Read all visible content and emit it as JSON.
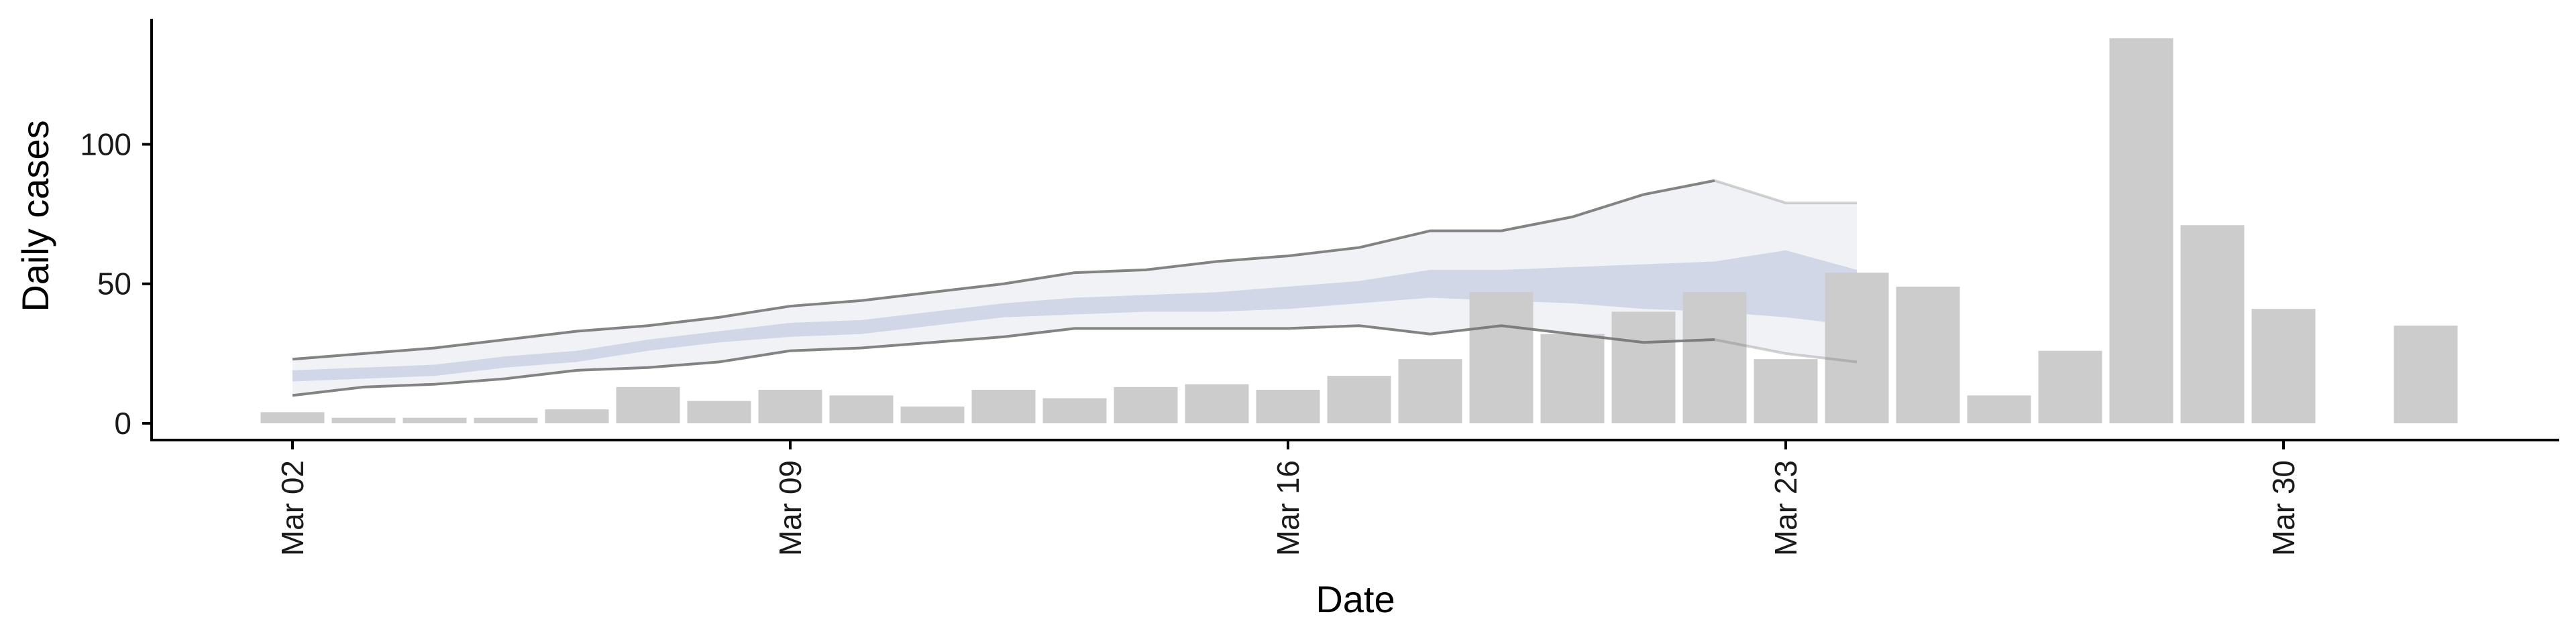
{
  "chart_data": {
    "type": "bar",
    "xlabel": "Date",
    "ylabel": "Daily cases",
    "x_ticks": [
      "Mar 02",
      "Mar 09",
      "Mar 16",
      "Mar 23",
      "Mar 30"
    ],
    "y_ticks": [
      0,
      50,
      100
    ],
    "ylim": [
      -6,
      145
    ],
    "grid": false,
    "legend": "none",
    "colors": {
      "bars": "#cccccc",
      "outer_band": "#eef0f5",
      "inner_band": "#c6cde0",
      "band_edge": "#6e6e6e",
      "axis": "#000000"
    },
    "cases": [
      {
        "date": "Mar 02",
        "value": 4
      },
      {
        "date": "Mar 03",
        "value": 2
      },
      {
        "date": "Mar 04",
        "value": 2
      },
      {
        "date": "Mar 05",
        "value": 2
      },
      {
        "date": "Mar 06",
        "value": 5
      },
      {
        "date": "Mar 07",
        "value": 13
      },
      {
        "date": "Mar 08",
        "value": 8
      },
      {
        "date": "Mar 09",
        "value": 12
      },
      {
        "date": "Mar 10",
        "value": 10
      },
      {
        "date": "Mar 11",
        "value": 6
      },
      {
        "date": "Mar 12",
        "value": 12
      },
      {
        "date": "Mar 13",
        "value": 9
      },
      {
        "date": "Mar 14",
        "value": 13
      },
      {
        "date": "Mar 15",
        "value": 14
      },
      {
        "date": "Mar 16",
        "value": 12
      },
      {
        "date": "Mar 17",
        "value": 17
      },
      {
        "date": "Mar 18",
        "value": 23
      },
      {
        "date": "Mar 19",
        "value": 47
      },
      {
        "date": "Mar 20",
        "value": 32
      },
      {
        "date": "Mar 21",
        "value": 40
      },
      {
        "date": "Mar 22",
        "value": 47
      },
      {
        "date": "Mar 23",
        "value": 23
      },
      {
        "date": "Mar 24",
        "value": 54
      },
      {
        "date": "Mar 25",
        "value": 49
      },
      {
        "date": "Mar 26",
        "value": 10
      },
      {
        "date": "Mar 27",
        "value": 26
      },
      {
        "date": "Mar 28",
        "value": 138
      },
      {
        "date": "Mar 29",
        "value": 71
      },
      {
        "date": "Mar 30",
        "value": 41
      },
      {
        "date": "Apr 01",
        "value": 35
      }
    ],
    "estimate_bands": [
      {
        "date": "Mar 02",
        "lower90": 10,
        "lower50": 15,
        "upper50": 19,
        "upper90": 23
      },
      {
        "date": "Mar 03",
        "lower90": 13,
        "lower50": 16,
        "upper50": 20,
        "upper90": 25
      },
      {
        "date": "Mar 04",
        "lower90": 14,
        "lower50": 17,
        "upper50": 21,
        "upper90": 27
      },
      {
        "date": "Mar 05",
        "lower90": 16,
        "lower50": 20,
        "upper50": 24,
        "upper90": 30
      },
      {
        "date": "Mar 06",
        "lower90": 19,
        "lower50": 22,
        "upper50": 26,
        "upper90": 33
      },
      {
        "date": "Mar 07",
        "lower90": 20,
        "lower50": 26,
        "upper50": 30,
        "upper90": 35
      },
      {
        "date": "Mar 08",
        "lower90": 22,
        "lower50": 29,
        "upper50": 33,
        "upper90": 38
      },
      {
        "date": "Mar 09",
        "lower90": 26,
        "lower50": 31,
        "upper50": 36,
        "upper90": 42
      },
      {
        "date": "Mar 10",
        "lower90": 27,
        "lower50": 32,
        "upper50": 37,
        "upper90": 44
      },
      {
        "date": "Mar 11",
        "lower90": 29,
        "lower50": 35,
        "upper50": 40,
        "upper90": 47
      },
      {
        "date": "Mar 12",
        "lower90": 31,
        "lower50": 38,
        "upper50": 43,
        "upper90": 50
      },
      {
        "date": "Mar 13",
        "lower90": 34,
        "lower50": 39,
        "upper50": 45,
        "upper90": 54
      },
      {
        "date": "Mar 14",
        "lower90": 34,
        "lower50": 40,
        "upper50": 46,
        "upper90": 55
      },
      {
        "date": "Mar 15",
        "lower90": 34,
        "lower50": 40,
        "upper50": 47,
        "upper90": 58
      },
      {
        "date": "Mar 16",
        "lower90": 34,
        "lower50": 41,
        "upper50": 49,
        "upper90": 60
      },
      {
        "date": "Mar 17",
        "lower90": 35,
        "lower50": 43,
        "upper50": 51,
        "upper90": 63
      },
      {
        "date": "Mar 18",
        "lower90": 32,
        "lower50": 45,
        "upper50": 55,
        "upper90": 69
      },
      {
        "date": "Mar 19",
        "lower90": 35,
        "lower50": 44,
        "upper50": 55,
        "upper90": 69
      },
      {
        "date": "Mar 20",
        "lower90": 32,
        "lower50": 43,
        "upper50": 56,
        "upper90": 74
      },
      {
        "date": "Mar 21",
        "lower90": 29,
        "lower50": 41,
        "upper50": 57,
        "upper90": 82
      },
      {
        "date": "Mar 22",
        "lower90": 30,
        "lower50": 40,
        "upper50": 58,
        "upper90": 87
      },
      {
        "date": "Mar 23",
        "lower90": 25,
        "lower50": 38,
        "upper50": 62,
        "upper90": 79
      },
      {
        "date": "Mar 24",
        "lower90": 22,
        "lower50": 35,
        "upper50": 55,
        "upper90": 79
      }
    ]
  }
}
